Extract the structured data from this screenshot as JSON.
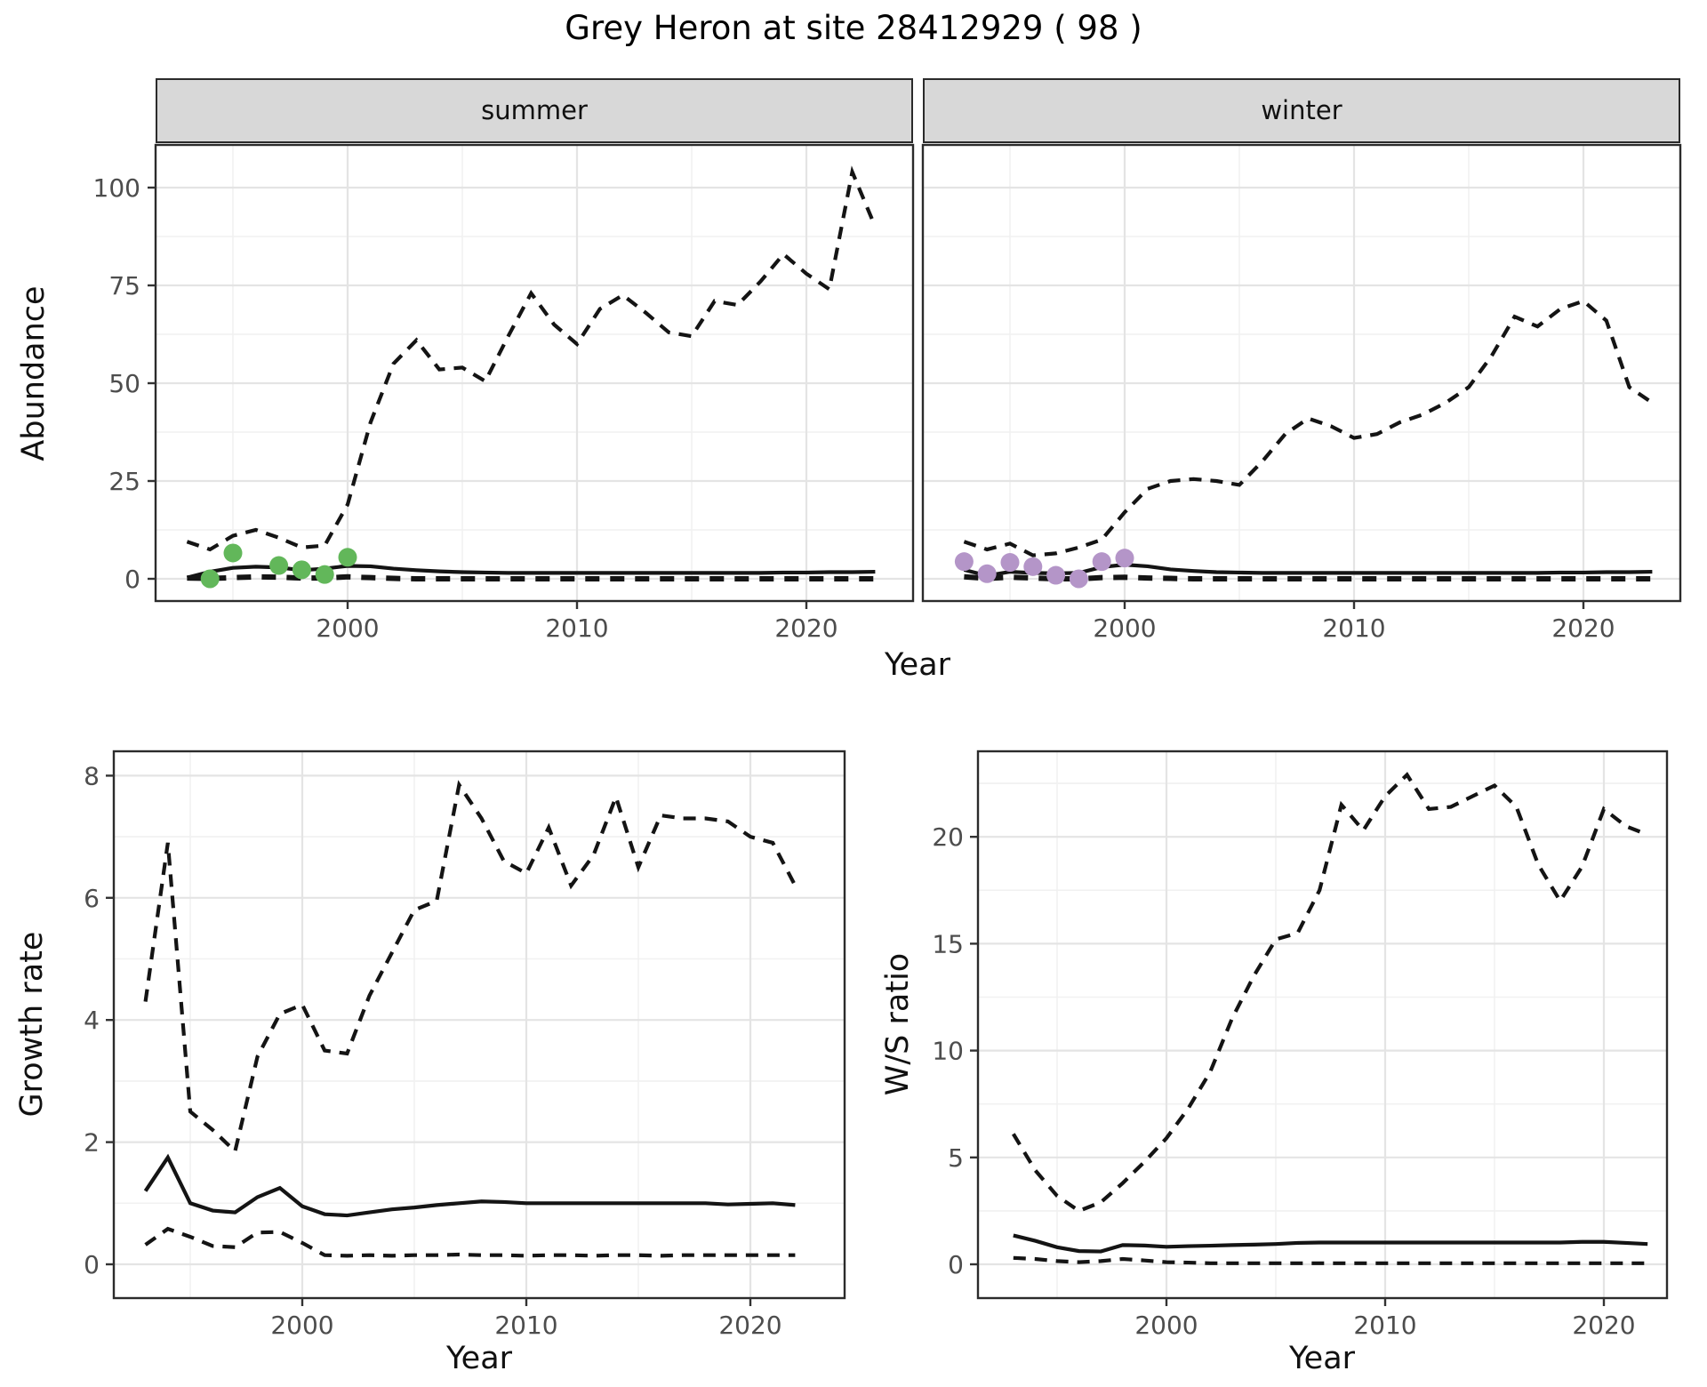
{
  "title": "Grey Heron at site 28412929 ( 98 )",
  "facets": {
    "summer_label": "summer",
    "winter_label": "winter"
  },
  "axis_titles": {
    "abundance": "Abundance",
    "growth_rate": "Growth rate",
    "ws_ratio": "W/S ratio",
    "year_top": "Year",
    "year_growth": "Year",
    "year_ws": "Year"
  },
  "colors": {
    "summer_point": "#62b75a",
    "winter_point": "#b495c8",
    "line": "#141414",
    "strip_fill": "#d8d8d8",
    "panel_border": "#2b2b2b",
    "grid_major": "#e4e4e4",
    "grid_minor": "#f1f1f1",
    "tick_text": "#4d4d4d"
  },
  "chart_data": [
    {
      "type": "line",
      "facet_label": "summer",
      "xlabel": "Year",
      "ylabel": "Abundance",
      "xlim": [
        1992.3,
        2024.6
      ],
      "ylim": [
        -5.5,
        110.5
      ],
      "grid": true,
      "legend": "none",
      "x": [
        1993,
        1994,
        1995,
        1996,
        1997,
        1998,
        1999,
        2000,
        2001,
        2002,
        2003,
        2004,
        2005,
        2006,
        2007,
        2008,
        2009,
        2010,
        2011,
        2012,
        2013,
        2014,
        2015,
        2016,
        2017,
        2018,
        2019,
        2020,
        2021,
        2022,
        2023
      ],
      "xticks": [
        2000,
        2010,
        2020
      ],
      "xticks_minor": [
        1995,
        2005,
        2015
      ],
      "yticks": [
        0,
        25,
        50,
        75,
        100
      ],
      "yticks_minor": [
        12.5,
        37.5,
        62.5,
        87.5
      ],
      "series": [
        {
          "name": "upper_95_ci",
          "style": "dashed",
          "values": [
            9.5,
            7.5,
            11,
            12.5,
            10.5,
            8,
            8.5,
            19,
            40,
            55,
            61,
            53.5,
            54,
            50.5,
            62,
            73,
            65,
            60,
            69,
            72.5,
            68,
            63,
            62,
            71,
            70,
            76,
            83,
            78,
            74,
            104,
            90
          ]
        },
        {
          "name": "smoothed_trend",
          "style": "solid",
          "values": [
            0.3,
            1.8,
            2.8,
            3.1,
            2.9,
            2.2,
            2.6,
            3.3,
            3.2,
            2.6,
            2.2,
            1.9,
            1.7,
            1.6,
            1.5,
            1.5,
            1.5,
            1.5,
            1.5,
            1.5,
            1.5,
            1.5,
            1.5,
            1.5,
            1.5,
            1.5,
            1.6,
            1.6,
            1.7,
            1.7,
            1.8
          ]
        },
        {
          "name": "lower_95_ci",
          "style": "dashed",
          "thick": true,
          "values": [
            0.2,
            0.1,
            0.3,
            0.5,
            0.4,
            0.2,
            0.2,
            0.5,
            0.3,
            0.1,
            0,
            0,
            0,
            0,
            0,
            0,
            0,
            0,
            0,
            0,
            0,
            0,
            0,
            0,
            0,
            0,
            0,
            0,
            0,
            0,
            0
          ]
        }
      ],
      "points": {
        "name": "observed_count",
        "color": "#62b75a",
        "x": [
          1994,
          1995,
          1997,
          1998,
          1999,
          2000
        ],
        "values": [
          0,
          6.6,
          3.4,
          2.3,
          1.1,
          5.5
        ]
      }
    },
    {
      "type": "line",
      "facet_label": "winter",
      "xlabel": "Year",
      "ylabel": "Abundance",
      "xlim": [
        1992.3,
        2024.6
      ],
      "ylim": [
        -5.5,
        110.5
      ],
      "grid": true,
      "legend": "none",
      "x": [
        1993,
        1994,
        1995,
        1996,
        1997,
        1998,
        1999,
        2000,
        2001,
        2002,
        2003,
        2004,
        2005,
        2006,
        2007,
        2008,
        2009,
        2010,
        2011,
        2012,
        2013,
        2014,
        2015,
        2016,
        2017,
        2018,
        2019,
        2020,
        2021,
        2022,
        2023
      ],
      "xticks": [
        2000,
        2010,
        2020
      ],
      "xticks_minor": [
        1995,
        2005,
        2015
      ],
      "yticks": [
        0,
        25,
        50,
        75,
        100
      ],
      "yticks_minor": [
        12.5,
        37.5,
        62.5,
        87.5
      ],
      "series": [
        {
          "name": "upper_95_ci",
          "style": "dashed",
          "values": [
            9.5,
            7.5,
            9,
            6,
            6.5,
            8,
            10,
            17,
            23,
            25,
            25.5,
            25,
            24,
            30,
            37,
            41,
            39,
            36,
            37,
            40,
            42,
            45,
            49,
            57,
            67,
            64.5,
            69,
            71,
            66,
            49,
            45
          ]
        },
        {
          "name": "smoothed_trend",
          "style": "solid",
          "values": [
            2.3,
            0.8,
            1.8,
            1.5,
            1.4,
            1.5,
            3.0,
            3.6,
            3.2,
            2.4,
            2.0,
            1.7,
            1.6,
            1.5,
            1.5,
            1.5,
            1.5,
            1.5,
            1.5,
            1.5,
            1.5,
            1.5,
            1.5,
            1.5,
            1.5,
            1.5,
            1.6,
            1.6,
            1.7,
            1.7,
            1.8
          ]
        },
        {
          "name": "lower_95_ci",
          "style": "dashed",
          "thick": true,
          "values": [
            0.5,
            0.1,
            0.4,
            0.2,
            0,
            0,
            0.3,
            0.4,
            0.2,
            0.1,
            0,
            0,
            0,
            0,
            0,
            0,
            0,
            0,
            0,
            0,
            0,
            0,
            0,
            0,
            0,
            0,
            0,
            0,
            0,
            0,
            0
          ]
        }
      ],
      "points": {
        "name": "observed_count",
        "color": "#b495c8",
        "x": [
          1993,
          1994,
          1995,
          1996,
          1997,
          1998,
          1999,
          2000
        ],
        "values": [
          4.4,
          1.3,
          4.2,
          3.1,
          0.9,
          0,
          4.4,
          5.3
        ]
      }
    },
    {
      "type": "line",
      "facet_label": "",
      "xlabel": "Year",
      "ylabel": "Growth rate",
      "xlim": [
        1992.5,
        2024.3
      ],
      "ylim": [
        -0.55,
        8.4
      ],
      "grid": true,
      "legend": "none",
      "x": [
        1993,
        1994,
        1995,
        1996,
        1997,
        1998,
        1999,
        2000,
        2001,
        2002,
        2003,
        2004,
        2005,
        2006,
        2007,
        2008,
        2009,
        2010,
        2011,
        2012,
        2013,
        2014,
        2015,
        2016,
        2017,
        2018,
        2019,
        2020,
        2021,
        2022
      ],
      "xticks": [
        2000,
        2010,
        2020
      ],
      "xticks_minor": [
        1995,
        2005,
        2015
      ],
      "yticks": [
        0,
        2,
        4,
        6,
        8
      ],
      "yticks_minor": [
        1,
        3,
        5,
        7
      ],
      "series": [
        {
          "name": "upper_95_ci",
          "style": "dashed",
          "values": [
            4.3,
            6.9,
            2.5,
            2.2,
            1.85,
            3.4,
            4.1,
            4.25,
            3.5,
            3.45,
            4.4,
            5.1,
            5.8,
            5.95,
            7.85,
            7.3,
            6.6,
            6.4,
            7.15,
            6.2,
            6.7,
            7.65,
            6.5,
            7.35,
            7.3,
            7.3,
            7.25,
            7.0,
            6.9,
            6.2
          ]
        },
        {
          "name": "smoothed_trend",
          "style": "solid",
          "values": [
            1.2,
            1.75,
            1.0,
            0.88,
            0.85,
            1.1,
            1.25,
            0.95,
            0.82,
            0.8,
            0.85,
            0.9,
            0.93,
            0.97,
            1.0,
            1.03,
            1.02,
            1.0,
            1.0,
            1.0,
            1.0,
            1.0,
            1.0,
            1.0,
            1.0,
            1.0,
            0.98,
            0.99,
            1.0,
            0.97
          ]
        },
        {
          "name": "lower_95_ci",
          "style": "dashed",
          "values": [
            0.32,
            0.58,
            0.45,
            0.3,
            0.28,
            0.52,
            0.53,
            0.35,
            0.15,
            0.14,
            0.15,
            0.14,
            0.15,
            0.15,
            0.16,
            0.15,
            0.15,
            0.14,
            0.15,
            0.15,
            0.14,
            0.15,
            0.15,
            0.14,
            0.15,
            0.15,
            0.15,
            0.15,
            0.15,
            0.15
          ]
        }
      ],
      "points": null
    },
    {
      "type": "line",
      "facet_label": "",
      "xlabel": "Year",
      "ylabel": "W/S ratio",
      "xlim": [
        1992.5,
        2024.9
      ],
      "ylim": [
        -1.6,
        24.0
      ],
      "grid": true,
      "legend": "none",
      "x": [
        1993,
        1994,
        1995,
        1996,
        1997,
        1998,
        1999,
        2000,
        2001,
        2002,
        2003,
        2004,
        2005,
        2006,
        2007,
        2008,
        2009,
        2010,
        2011,
        2012,
        2013,
        2014,
        2015,
        2016,
        2017,
        2018,
        2019,
        2020,
        2021,
        2022
      ],
      "xticks": [
        2000,
        2010,
        2020
      ],
      "xticks_minor": [
        1995,
        2005,
        2015
      ],
      "yticks": [
        0,
        5,
        10,
        15,
        20
      ],
      "yticks_minor": [
        2.5,
        7.5,
        12.5,
        17.5,
        22.5
      ],
      "series": [
        {
          "name": "upper_95_ci",
          "style": "dashed",
          "values": [
            6.1,
            4.4,
            3.2,
            2.5,
            2.9,
            3.8,
            4.8,
            5.9,
            7.3,
            9.0,
            11.5,
            13.5,
            15.2,
            15.5,
            17.5,
            21.5,
            20.3,
            21.9,
            22.9,
            21.3,
            21.4,
            21.9,
            22.4,
            21.4,
            18.7,
            17.0,
            18.6,
            21.3,
            20.5,
            20.1
          ]
        },
        {
          "name": "smoothed_trend",
          "style": "solid",
          "values": [
            1.35,
            1.1,
            0.8,
            0.62,
            0.6,
            0.9,
            0.88,
            0.82,
            0.85,
            0.87,
            0.9,
            0.92,
            0.95,
            1.0,
            1.02,
            1.02,
            1.02,
            1.02,
            1.02,
            1.02,
            1.02,
            1.02,
            1.02,
            1.02,
            1.02,
            1.02,
            1.05,
            1.05,
            1.0,
            0.95
          ]
        },
        {
          "name": "lower_95_ci",
          "style": "dashed",
          "values": [
            0.3,
            0.25,
            0.15,
            0.1,
            0.15,
            0.25,
            0.18,
            0.1,
            0.08,
            0.05,
            0.05,
            0.05,
            0.05,
            0.05,
            0.05,
            0.05,
            0.05,
            0.05,
            0.05,
            0.05,
            0.05,
            0.05,
            0.05,
            0.05,
            0.05,
            0.05,
            0.05,
            0.05,
            0.05,
            0.05
          ]
        }
      ],
      "points": null
    }
  ]
}
